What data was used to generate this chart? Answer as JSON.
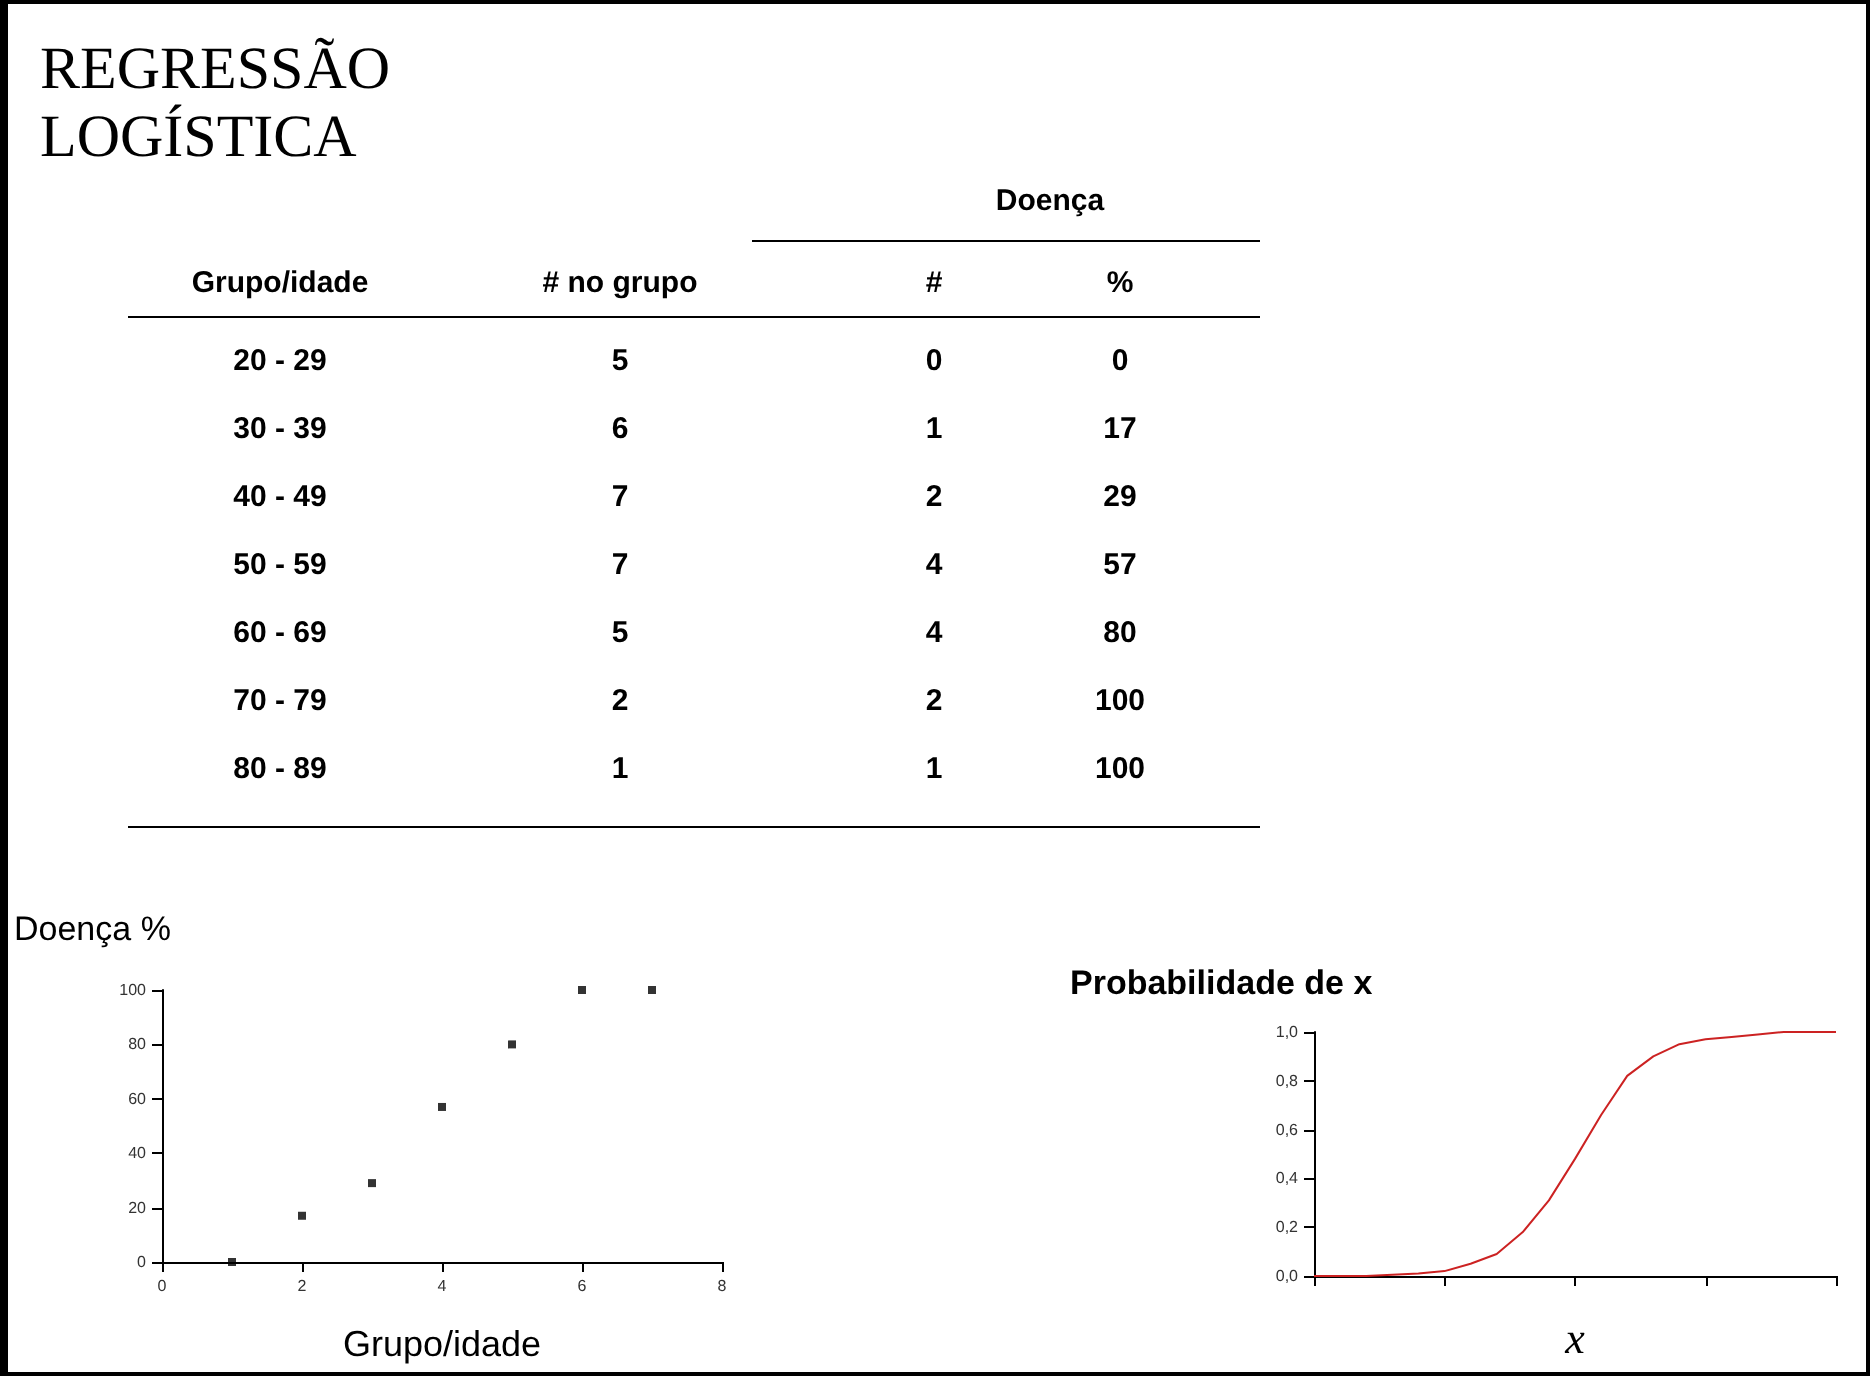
{
  "chart_data": [
    {
      "type": "other",
      "title": "REGRESSÃO LOGÍSTICA",
      "annotations": [
        "Doença",
        "Grupo/idade",
        "# no grupo",
        "#",
        "%",
        "20 - 29",
        "5",
        "0",
        "0",
        "30 - 39",
        "6",
        "1",
        "17",
        "40 - 49",
        "7",
        "2",
        "29",
        "50 - 59",
        "7",
        "4",
        "57",
        "60 - 69",
        "5",
        "4",
        "80",
        "70 - 79",
        "2",
        "2",
        "100",
        "80 - 89",
        "1",
        "1",
        "100"
      ]
    },
    {
      "type": "scatter",
      "xlabel": "Grupo/idade",
      "ylabel": "Doença %",
      "x": [
        1,
        2,
        3,
        4,
        5,
        6,
        7
      ],
      "values": [
        0,
        17,
        29,
        57,
        80,
        100,
        100
      ],
      "color": "#000000",
      "marker": "square",
      "xlim": [
        0,
        8
      ],
      "xticks": [
        0,
        2,
        4,
        6,
        8
      ],
      "ylim": [
        0,
        100
      ],
      "yticks": [
        0,
        20,
        40,
        60,
        80,
        100
      ],
      "grid": false
    },
    {
      "type": "line",
      "xlabel": "x",
      "ylabel": "Probabilidade de x",
      "categories": [
        null,
        null,
        null,
        null,
        null,
        null,
        null,
        null,
        null,
        null,
        null,
        null,
        null,
        null,
        null,
        null,
        null,
        null,
        null,
        null,
        null
      ],
      "values": [
        0,
        0,
        0,
        0.005,
        0.01,
        0.02,
        0.05,
        0.09,
        0.18,
        0.31,
        0.48,
        0.66,
        0.82,
        0.9,
        0.95,
        0.97,
        0.98,
        0.99,
        1.0,
        1.0,
        1.0
      ],
      "color": "#cc2222",
      "marker": "none",
      "line_style": "solid",
      "ylim": [
        0,
        1
      ],
      "yticks": [
        {
          "value": 0,
          "label": "0,0"
        },
        {
          "value": 0.2,
          "label": "0,2"
        },
        {
          "value": 0.4,
          "label": "0,4"
        },
        {
          "value": 0.6,
          "label": "0,6"
        },
        {
          "value": 0.8,
          "label": "0,8"
        },
        {
          "value": 1,
          "label": "1,0"
        }
      ],
      "tick_labels": "y",
      "grid": false
    }
  ]
}
